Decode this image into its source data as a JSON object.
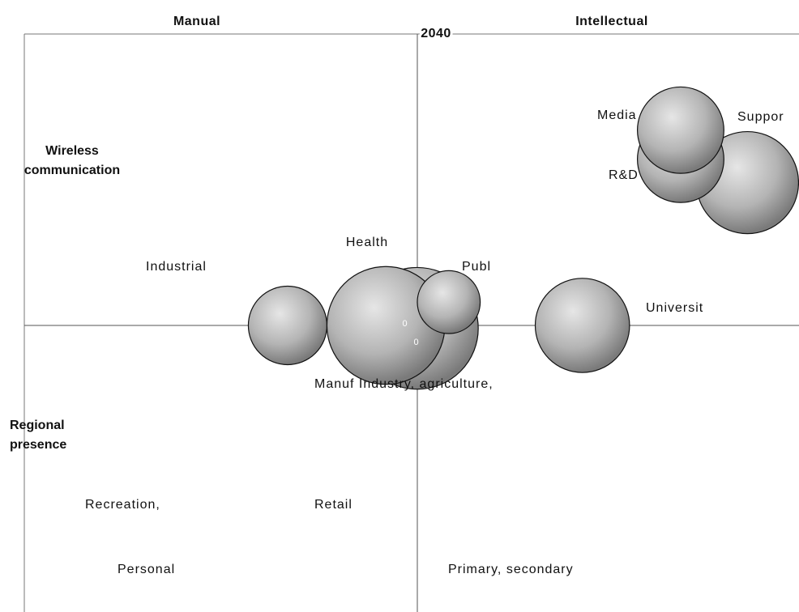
{
  "chart_data": {
    "type": "bubble",
    "title": "2040",
    "x_labels": [
      "Manual",
      "Intellectual"
    ],
    "y_labels": [
      "Wireless communication",
      "Regional presence"
    ],
    "center_labels": [
      "0",
      "0"
    ],
    "xlim": [
      -1,
      1
    ],
    "ylim": [
      -1,
      1
    ],
    "points": [
      {
        "name": "Industrial",
        "x": -0.33,
        "y": 0.0,
        "size": 0.1
      },
      {
        "name": "Manuf Industry, agriculture,",
        "x": 0.0,
        "y": -0.01,
        "size": 0.155
      },
      {
        "name": "Health",
        "x": -0.08,
        "y": 0.0,
        "size": 0.15
      },
      {
        "name": "Publ",
        "x": 0.08,
        "y": 0.08,
        "size": 0.08
      },
      {
        "name": "Universit",
        "x": 0.42,
        "y": 0.0,
        "size": 0.12
      },
      {
        "name": "Suppor",
        "x": 0.84,
        "y": 0.49,
        "size": 0.13
      },
      {
        "name": "R&D",
        "x": 0.67,
        "y": 0.57,
        "size": 0.11
      },
      {
        "name": "Media",
        "x": 0.67,
        "y": 0.67,
        "size": 0.11
      },
      {
        "name": "Recreation,",
        "x": null,
        "y": null,
        "size": null
      },
      {
        "name": "Retail",
        "x": null,
        "y": null,
        "size": null
      },
      {
        "name": "Personal",
        "x": null,
        "y": null,
        "size": null
      },
      {
        "name": "Primary, secondary",
        "x": null,
        "y": null,
        "size": null
      }
    ]
  }
}
